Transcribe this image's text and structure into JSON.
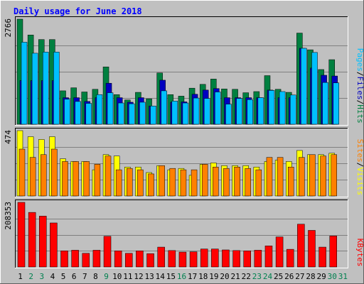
{
  "chart_data": {
    "type": "bar",
    "title": "Daily usage for June 2018",
    "categories": [
      "1",
      "2",
      "3",
      "4",
      "5",
      "6",
      "7",
      "8",
      "9",
      "10",
      "11",
      "12",
      "13",
      "14",
      "15",
      "16",
      "17",
      "18",
      "19",
      "20",
      "21",
      "22",
      "23",
      "24",
      "25",
      "26",
      "27",
      "28",
      "29",
      "30",
      "31"
    ],
    "weekend_days": [
      "2",
      "3",
      "9",
      "16",
      "23",
      "24",
      "30",
      "31"
    ],
    "top_panel": {
      "max_label": "2766",
      "ymax": 2766,
      "series": [
        {
          "name": "Hits",
          "color": "#008040",
          "values": [
            2766,
            2350,
            2230,
            2230,
            880,
            960,
            850,
            920,
            1510,
            780,
            640,
            840,
            670,
            1350,
            780,
            740,
            950,
            1050,
            1190,
            930,
            920,
            830,
            860,
            1280,
            920,
            840,
            2400,
            1960,
            1440,
            1700
          ]
        },
        {
          "name": "Files",
          "color": "#0000c0",
          "values": [
            1150,
            1150,
            1150,
            1150,
            700,
            700,
            600,
            700,
            1080,
            700,
            580,
            700,
            480,
            1160,
            580,
            590,
            790,
            900,
            940,
            700,
            700,
            700,
            700,
            900,
            700,
            700,
            2000,
            1480,
            1290,
            1270
          ]
        },
        {
          "name": "Pages",
          "color": "#00c0ff",
          "values": [
            2160,
            1870,
            1900,
            1900,
            660,
            600,
            550,
            780,
            830,
            560,
            540,
            580,
            480,
            880,
            610,
            560,
            690,
            680,
            850,
            530,
            680,
            650,
            700,
            890,
            860,
            770,
            2000,
            1890,
            1100,
            1090
          ]
        }
      ]
    },
    "middle_panel": {
      "max_label": "474",
      "ymax": 474,
      "series": [
        {
          "name": "Visits",
          "color": "#ffff00",
          "values": [
            474,
            430,
            410,
            430,
            270,
            250,
            250,
            190,
            300,
            290,
            210,
            210,
            170,
            220,
            190,
            200,
            150,
            230,
            240,
            220,
            220,
            220,
            210,
            250,
            260,
            250,
            330,
            300,
            300,
            310
          ]
        },
        {
          "name": "Sites",
          "color": "#ff8000",
          "values": [
            340,
            280,
            300,
            340,
            250,
            250,
            250,
            230,
            290,
            190,
            200,
            190,
            160,
            220,
            200,
            190,
            190,
            230,
            210,
            200,
            210,
            200,
            190,
            280,
            280,
            210,
            280,
            300,
            290,
            300
          ]
        }
      ]
    },
    "bottom_panel": {
      "max_label": "208353",
      "ymax": 208353,
      "series": [
        {
          "name": "KBytes",
          "color": "#ff0000",
          "values": [
            208353,
            176000,
            164000,
            142000,
            52000,
            54000,
            44000,
            54000,
            99000,
            52000,
            44000,
            52000,
            43000,
            64000,
            53000,
            48000,
            49000,
            58000,
            58000,
            55000,
            53000,
            52000,
            54000,
            68000,
            97000,
            57000,
            138000,
            118000,
            64000,
            100000
          ]
        }
      ]
    },
    "right_labels": {
      "top": [
        "Pages",
        "Files",
        "Hits"
      ],
      "middle": [
        "Sites",
        "Visits"
      ],
      "bottom": [
        "KBytes"
      ]
    },
    "separator": "/",
    "colors": {
      "background": "#c0c0c0",
      "frame": "#ffffff",
      "grid": "#808080",
      "title": "#0000ff",
      "weekday_label": "#000000",
      "weekend_label": "#00804f"
    }
  }
}
